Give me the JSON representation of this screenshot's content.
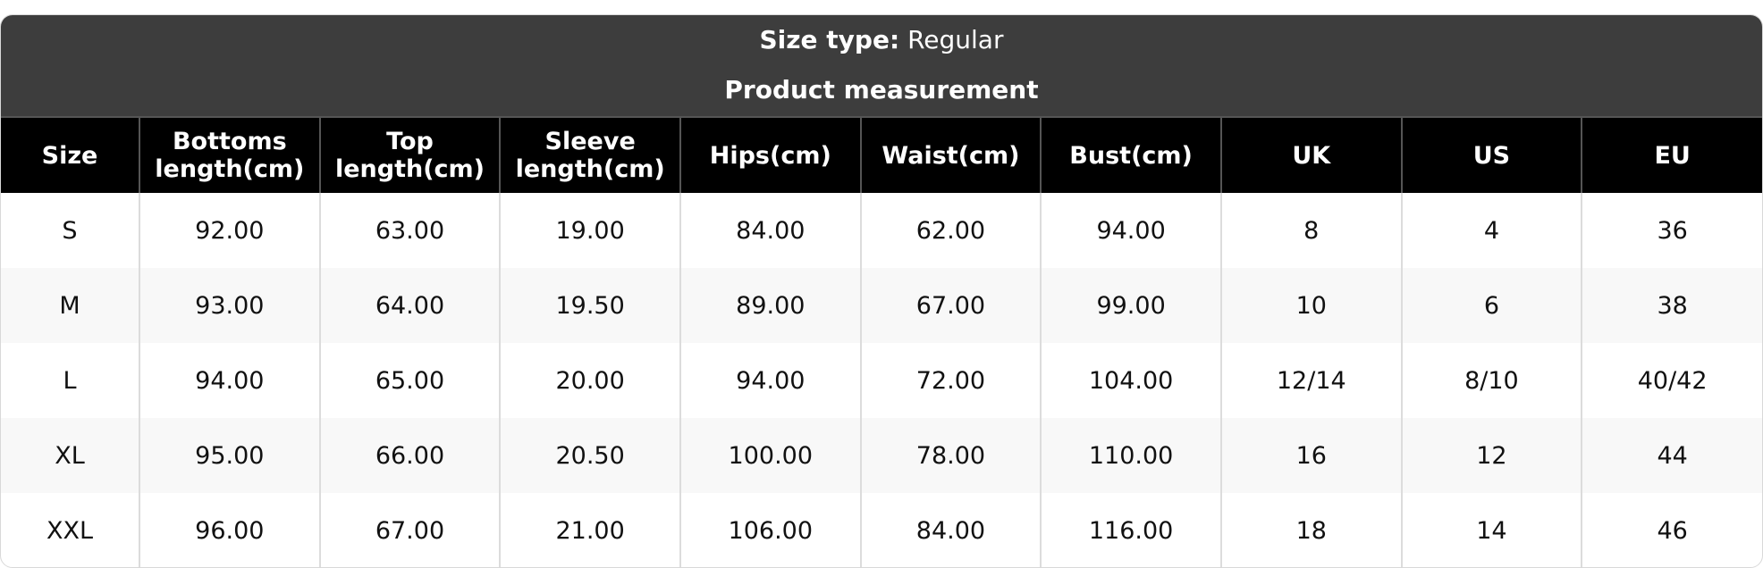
{
  "header": {
    "size_type_label": "Size type:",
    "size_type_value": "Regular",
    "section_title": "Product measurement"
  },
  "table": {
    "columns": [
      "Size",
      "Bottoms length(cm)",
      "Top length(cm)",
      "Sleeve length(cm)",
      "Hips(cm)",
      "Waist(cm)",
      "Bust(cm)",
      "UK",
      "US",
      "EU"
    ],
    "rows": [
      [
        "S",
        "92.00",
        "63.00",
        "19.00",
        "84.00",
        "62.00",
        "94.00",
        "8",
        "4",
        "36"
      ],
      [
        "M",
        "93.00",
        "64.00",
        "19.50",
        "89.00",
        "67.00",
        "99.00",
        "10",
        "6",
        "38"
      ],
      [
        "L",
        "94.00",
        "65.00",
        "20.00",
        "94.00",
        "72.00",
        "104.00",
        "12/14",
        "8/10",
        "40/42"
      ],
      [
        "XL",
        "95.00",
        "66.00",
        "20.50",
        "100.00",
        "78.00",
        "110.00",
        "16",
        "12",
        "44"
      ],
      [
        "XXL",
        "96.00",
        "67.00",
        "21.00",
        "106.00",
        "84.00",
        "116.00",
        "18",
        "14",
        "46"
      ]
    ]
  },
  "colors": {
    "header_bg": "#3d3d3d",
    "column_header_bg": "#000000",
    "alt_row_bg": "#f8f8f8"
  }
}
